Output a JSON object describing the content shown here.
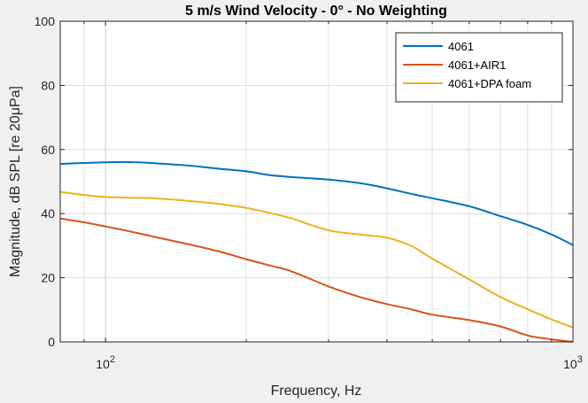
{
  "chart_data": {
    "type": "line",
    "title": "5 m/s Wind Velocity - 0° - No Weighting",
    "xlabel": "Frequency, Hz",
    "ylabel": "Magnitude, dB SPL [re 20μPa]",
    "xscale": "log",
    "xlim": [
      80,
      1000
    ],
    "ylim": [
      0,
      100
    ],
    "yticks": [
      0,
      20,
      40,
      60,
      80,
      100
    ],
    "ytick_labels": [
      "0",
      "20",
      "40",
      "60",
      "80",
      "100"
    ],
    "xticks_major": [
      100,
      1000
    ],
    "xtick_base": "10",
    "xtick_exponents": [
      "2",
      "3"
    ],
    "grid": true,
    "legend_position": "top-right",
    "series": [
      {
        "name": "4061",
        "color": "#0072bd",
        "x": [
          80,
          90,
          100,
          110,
          125,
          150,
          175,
          200,
          225,
          250,
          300,
          350,
          400,
          450,
          500,
          600,
          700,
          800,
          900,
          1000
        ],
        "y": [
          55.5,
          55.8,
          56.0,
          56.1,
          55.8,
          55.0,
          54.0,
          53.2,
          52.0,
          51.4,
          50.6,
          49.5,
          47.9,
          46.2,
          44.8,
          42.3,
          39.2,
          36.5,
          33.5,
          30.2
        ]
      },
      {
        "name": "4061+AIR1",
        "color": "#d95319",
        "x": [
          80,
          90,
          100,
          110,
          125,
          150,
          175,
          200,
          225,
          250,
          300,
          350,
          400,
          450,
          500,
          600,
          700,
          800,
          900,
          1000
        ],
        "y": [
          38.5,
          37.3,
          36.0,
          34.8,
          33.0,
          30.5,
          28.2,
          25.8,
          23.8,
          22.0,
          17.3,
          14.0,
          11.8,
          10.2,
          8.5,
          6.8,
          4.8,
          2.0,
          0.8,
          0.0
        ]
      },
      {
        "name": "4061+DPA foam",
        "color": "#edb120",
        "x": [
          80,
          90,
          100,
          110,
          125,
          150,
          175,
          200,
          225,
          250,
          300,
          350,
          400,
          450,
          500,
          600,
          700,
          800,
          900,
          1000
        ],
        "y": [
          46.8,
          45.8,
          45.2,
          45.0,
          44.8,
          44.0,
          43.0,
          41.8,
          40.2,
          38.5,
          34.8,
          33.5,
          32.5,
          30.0,
          26.0,
          19.5,
          14.0,
          10.2,
          7.0,
          4.5
        ]
      }
    ]
  }
}
